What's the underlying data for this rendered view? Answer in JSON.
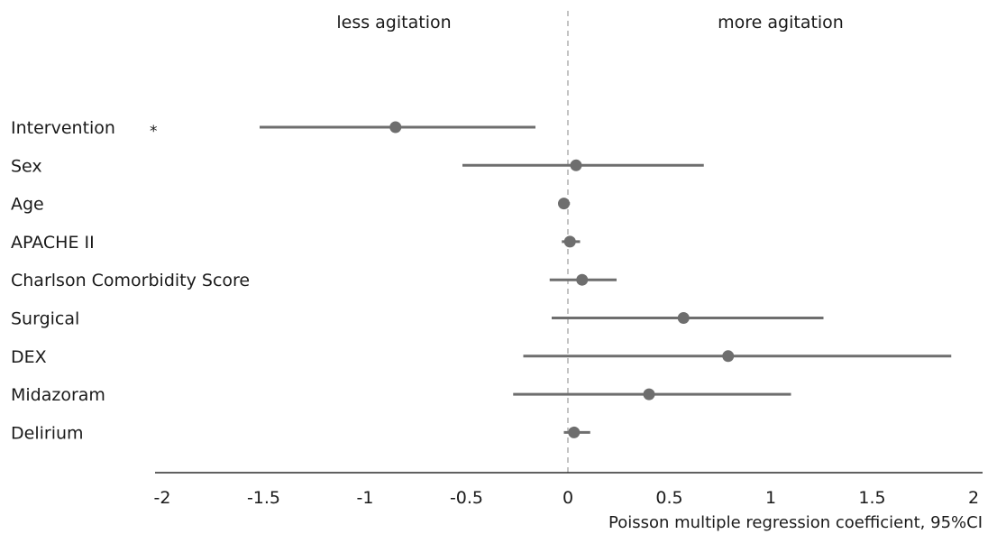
{
  "chart_data": {
    "type": "forest",
    "xlabel": "Poisson multiple regression coefficient, 95%CI",
    "side_labels": {
      "left": "less agitation",
      "right": "more agitation"
    },
    "xlim": [
      -2,
      2
    ],
    "reference_line": 0,
    "ticks": [
      {
        "value": -2,
        "label": "-2"
      },
      {
        "value": -1.5,
        "label": "-1.5"
      },
      {
        "value": -1,
        "label": "-1"
      },
      {
        "value": -0.5,
        "label": "-0.5"
      },
      {
        "value": 0,
        "label": "0"
      },
      {
        "value": 0.5,
        "label": "0.5"
      },
      {
        "value": 1,
        "label": "1"
      },
      {
        "value": 1.5,
        "label": "1.5"
      },
      {
        "value": 2,
        "label": "2"
      }
    ],
    "rows": [
      {
        "label": "Intervention",
        "estimate": -0.85,
        "lower": -1.52,
        "upper": -0.16,
        "mark": "*"
      },
      {
        "label": "Sex",
        "estimate": 0.04,
        "lower": -0.52,
        "upper": 0.67,
        "mark": ""
      },
      {
        "label": "Age",
        "estimate": -0.02,
        "lower": -0.04,
        "upper": 0.01,
        "mark": ""
      },
      {
        "label": "APACHE II",
        "estimate": 0.01,
        "lower": -0.03,
        "upper": 0.06,
        "mark": ""
      },
      {
        "label": "Charlson Comorbidity Score",
        "estimate": 0.07,
        "lower": -0.09,
        "upper": 0.24,
        "mark": ""
      },
      {
        "label": "Surgical",
        "estimate": 0.57,
        "lower": -0.08,
        "upper": 1.26,
        "mark": ""
      },
      {
        "label": "DEX",
        "estimate": 0.79,
        "lower": -0.22,
        "upper": 1.89,
        "mark": ""
      },
      {
        "label": "Midazoram",
        "estimate": 0.4,
        "lower": -0.27,
        "upper": 1.1,
        "mark": ""
      },
      {
        "label": "Delirium",
        "estimate": 0.03,
        "lower": -0.02,
        "upper": 0.11,
        "mark": ""
      }
    ],
    "colors": {
      "marker": "#6e6e6e",
      "ci_line": "#6e6e6e",
      "reference_line": "#c4c4c4",
      "axis": "#2b2b2b"
    }
  }
}
